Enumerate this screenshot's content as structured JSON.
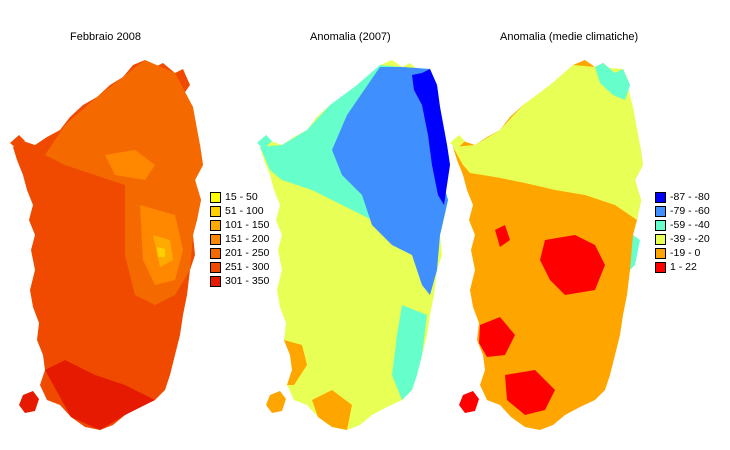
{
  "maps": [
    {
      "title": "Febbraio 2008",
      "legend": [
        {
          "label": "15 - 50",
          "color": "#ffff00"
        },
        {
          "label": "51 - 100",
          "color": "#ffd000"
        },
        {
          "label": "101 - 150",
          "color": "#ffaa00"
        },
        {
          "label": "151 - 200",
          "color": "#ff8800"
        },
        {
          "label": "201 - 250",
          "color": "#f56a00"
        },
        {
          "label": "251 - 300",
          "color": "#f04a00"
        },
        {
          "label": "301 - 350",
          "color": "#e61a00"
        }
      ]
    },
    {
      "title": "Anomalia (2007)"
    },
    {
      "title": "Anomalia (medie climatiche)",
      "legend": [
        {
          "label": "-87 - -80",
          "color": "#0000ff"
        },
        {
          "label": "-79 - -60",
          "color": "#3f8fff"
        },
        {
          "label": "-59 - -40",
          "color": "#66ffcc"
        },
        {
          "label": "-39 - -20",
          "color": "#e8ff55"
        },
        {
          "label": "-19 - 0",
          "color": "#ffa500"
        },
        {
          "label": "1 - 22",
          "color": "#ff0000"
        }
      ]
    }
  ]
}
